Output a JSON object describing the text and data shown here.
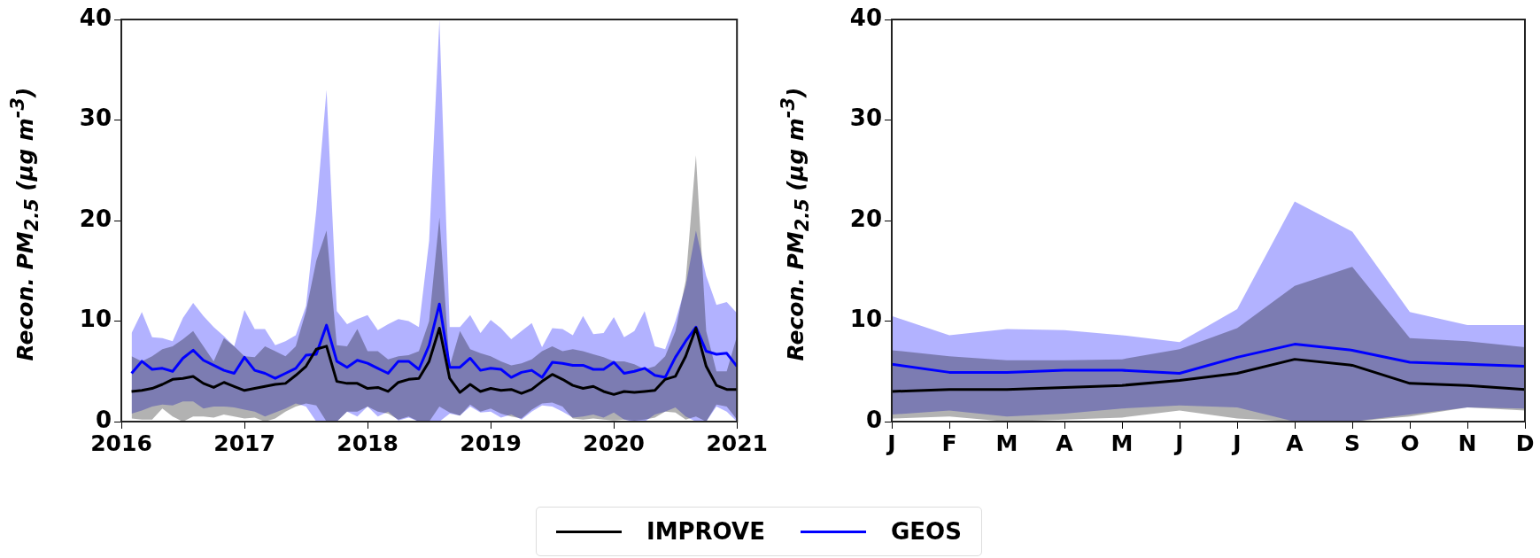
{
  "chart_data": [
    {
      "type": "line",
      "ylabel": "Recon. PM$_{2.5}$ (μg m$^{-3}$)",
      "xlim": [
        "2016",
        "2021"
      ],
      "xticks": [
        {
          "value": "2016",
          "label": "2016"
        },
        {
          "value": "2017",
          "label": "2017"
        },
        {
          "value": "2018",
          "label": "2018"
        },
        {
          "value": "2019",
          "label": "2019"
        },
        {
          "value": "2020",
          "label": "2020"
        },
        {
          "value": "2021",
          "label": "2021"
        }
      ],
      "ylim": [
        0,
        40
      ],
      "yticks": [
        0,
        10,
        20,
        30,
        40
      ],
      "grid": false,
      "legend": "bottom",
      "x": [
        "2016-02",
        "2016-03",
        "2016-04",
        "2016-05",
        "2016-06",
        "2016-07",
        "2016-08",
        "2016-09",
        "2016-10",
        "2016-11",
        "2016-12",
        "2017-01",
        "2017-02",
        "2017-03",
        "2017-04",
        "2017-05",
        "2017-06",
        "2017-07",
        "2017-08",
        "2017-09",
        "2017-10",
        "2017-11",
        "2017-12",
        "2018-01",
        "2018-02",
        "2018-03",
        "2018-04",
        "2018-05",
        "2018-06",
        "2018-07",
        "2018-08",
        "2018-09",
        "2018-10",
        "2018-11",
        "2018-12",
        "2019-01",
        "2019-02",
        "2019-03",
        "2019-04",
        "2019-05",
        "2019-06",
        "2019-07",
        "2019-08",
        "2019-09",
        "2019-10",
        "2019-11",
        "2019-12",
        "2020-01",
        "2020-02",
        "2020-03",
        "2020-04",
        "2020-05",
        "2020-06",
        "2020-07",
        "2020-08",
        "2020-09",
        "2020-10",
        "2020-11",
        "2020-12",
        "2021-01"
      ],
      "series": [
        {
          "name": "IMPROVE",
          "color": "#000000",
          "values": [
            3.0,
            3.1,
            3.3,
            3.7,
            4.2,
            4.3,
            4.5,
            3.8,
            3.4,
            3.9,
            3.5,
            3.1,
            3.3,
            3.5,
            3.7,
            3.8,
            4.6,
            5.5,
            7.2,
            7.5,
            4.0,
            3.8,
            3.8,
            3.3,
            3.4,
            3.0,
            3.9,
            4.2,
            4.3,
            6.0,
            9.3,
            4.3,
            2.9,
            3.7,
            3.0,
            3.3,
            3.1,
            3.2,
            2.8,
            3.2,
            4.0,
            4.7,
            4.2,
            3.6,
            3.3,
            3.5,
            3.0,
            2.7,
            3.0,
            2.9,
            3.0,
            3.1,
            4.2,
            4.5,
            6.5,
            9.3,
            5.5,
            3.6,
            3.2,
            3.2
          ],
          "lower": [
            0.3,
            0.2,
            0.2,
            1.3,
            0.5,
            0,
            0.5,
            0.5,
            0.4,
            0.7,
            0.5,
            0.3,
            0.4,
            0,
            0.3,
            1.0,
            1.5,
            1.8,
            1.6,
            0,
            0,
            1.0,
            1.0,
            1.5,
            1.0,
            0.8,
            0.2,
            0.5,
            0,
            0,
            1.5,
            0.9,
            0.6,
            1.7,
            1.0,
            1.3,
            0.8,
            0.5,
            0.3,
            1.2,
            1.8,
            1.9,
            1.5,
            0.3,
            0.2,
            0.3,
            0.2,
            0.1,
            0.2,
            0.1,
            0.2,
            0.4,
            1.0,
            0.9,
            0.2,
            0.5,
            0,
            1.7,
            1.5,
            0.2
          ],
          "upper": [
            6.5,
            6.0,
            6.5,
            7.2,
            7.5,
            8.2,
            9.0,
            7.5,
            6.0,
            8.3,
            7.5,
            6.5,
            6.4,
            7.5,
            7.0,
            6.5,
            7.5,
            11,
            16,
            19,
            7.6,
            7.5,
            9.2,
            7.0,
            7.0,
            6.2,
            6.5,
            6.6,
            7.0,
            10,
            20.3,
            5.5,
            9.0,
            7.2,
            6.8,
            6.5,
            6.0,
            5.6,
            5.8,
            6.2,
            7.0,
            7.5,
            7.0,
            7.2,
            7.0,
            6.7,
            6.4,
            6.0,
            6.0,
            5.7,
            5.2,
            5.5,
            6.5,
            9,
            14,
            26.5,
            9,
            5.0,
            5.0,
            8.5
          ]
        },
        {
          "name": "GEOS",
          "color": "#0000ff",
          "values": [
            4.8,
            6.0,
            5.2,
            5.3,
            5.0,
            6.3,
            7.1,
            6.1,
            5.6,
            5.1,
            4.8,
            6.4,
            5.1,
            4.8,
            4.3,
            4.8,
            5.3,
            6.6,
            6.7,
            9.6,
            6.0,
            5.4,
            6.1,
            5.8,
            5.3,
            4.8,
            6.0,
            6.0,
            5.2,
            7.6,
            11.7,
            5.4,
            5.4,
            6.3,
            5.1,
            5.3,
            5.2,
            4.4,
            4.9,
            5.1,
            4.4,
            5.9,
            5.8,
            5.6,
            5.6,
            5.2,
            5.2,
            5.9,
            4.8,
            5.0,
            5.3,
            4.6,
            4.4,
            6.4,
            8.0,
            9.4,
            7.0,
            6.7,
            6.8,
            5.5
          ],
          "lower": [
            0.8,
            1.1,
            1.5,
            1.7,
            1.6,
            2.0,
            2.0,
            1.3,
            1.5,
            1.5,
            1.4,
            1.2,
            1.0,
            0.5,
            0.9,
            1.3,
            1.8,
            1.5,
            0,
            0,
            0,
            1.0,
            0.5,
            1.5,
            0.5,
            1.0,
            0.1,
            0.4,
            0,
            0,
            0,
            0.8,
            0.6,
            1.5,
            0.9,
            1.0,
            0.4,
            0.7,
            0.2,
            1.0,
            1.6,
            1.5,
            1.0,
            0.4,
            0.5,
            0.7,
            0.4,
            0.9,
            0.2,
            0,
            0,
            0.7,
            1.0,
            1.4,
            0.5,
            0,
            0,
            1.5,
            1.0,
            0
          ],
          "upper": [
            8.8,
            10.9,
            8.4,
            8.3,
            8.0,
            10.3,
            11.8,
            10.5,
            9.4,
            8.5,
            7.5,
            11.1,
            9.2,
            9.2,
            7.6,
            8.0,
            8.6,
            11.5,
            21,
            33,
            11.0,
            9.7,
            10.2,
            10.6,
            9.1,
            9.7,
            10.2,
            10.0,
            9.4,
            18,
            40,
            9.4,
            9.4,
            10.6,
            8.8,
            10.1,
            9.3,
            8.2,
            9.0,
            9.8,
            7.4,
            9.3,
            9.2,
            8.6,
            10.5,
            8.7,
            8.8,
            10.4,
            8.4,
            9.0,
            11.0,
            7.5,
            7.2,
            10,
            13.5,
            19,
            14.5,
            11.6,
            11.9,
            10.8
          ]
        }
      ]
    },
    {
      "type": "line",
      "ylabel": "Recon. PM$_{2.5}$ (μg m$^{-3}$)",
      "categories": [
        "J",
        "F",
        "M",
        "A",
        "M",
        "J",
        "J",
        "A",
        "S",
        "O",
        "N",
        "D"
      ],
      "ylim": [
        0,
        40
      ],
      "yticks": [
        0,
        10,
        20,
        30,
        40
      ],
      "grid": false,
      "legend": "bottom",
      "series": [
        {
          "name": "IMPROVE",
          "color": "#000000",
          "values": [
            3.0,
            3.2,
            3.2,
            3.4,
            3.6,
            4.1,
            4.8,
            6.2,
            5.6,
            3.8,
            3.6,
            3.2
          ],
          "lower": [
            0.3,
            0.5,
            0,
            0.2,
            0.4,
            1.1,
            0.3,
            0,
            0,
            0.5,
            1.4,
            1.1
          ],
          "upper": [
            7.1,
            6.5,
            6.1,
            6.1,
            6.2,
            7.2,
            9.3,
            13.5,
            15.4,
            8.3,
            8.0,
            7.4
          ]
        },
        {
          "name": "GEOS",
          "color": "#0000ff",
          "values": [
            5.7,
            4.9,
            4.9,
            5.1,
            5.1,
            4.8,
            6.4,
            7.7,
            7.1,
            5.9,
            5.7,
            5.5
          ],
          "lower": [
            0.7,
            1.1,
            0.5,
            0.8,
            1.3,
            1.6,
            1.4,
            0,
            0,
            0.7,
            1.4,
            1.3
          ],
          "upper": [
            10.5,
            8.6,
            9.2,
            9.1,
            8.6,
            7.9,
            11.2,
            21.9,
            18.9,
            10.9,
            9.6,
            9.6
          ]
        }
      ]
    }
  ]
}
